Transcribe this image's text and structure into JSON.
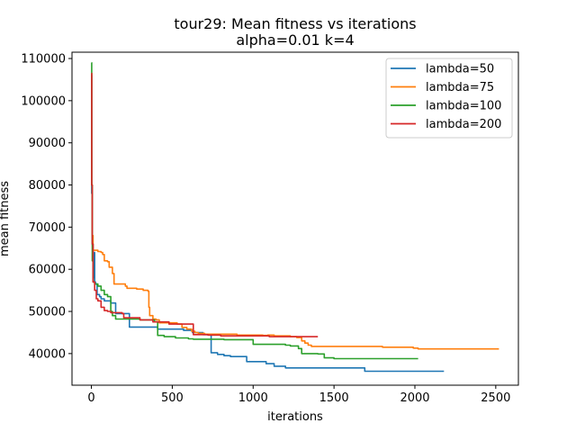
{
  "chart_data": {
    "type": "line",
    "title": "tour29: Mean fitness vs iterations",
    "subtitle": "alpha=0.01 k=4",
    "xlabel": "iterations",
    "ylabel": "mean fitness",
    "xlim": [
      -120,
      2640
    ],
    "ylim": [
      32500,
      111500
    ],
    "xticks": [
      0,
      500,
      1000,
      1500,
      2000,
      2500
    ],
    "yticks": [
      40000,
      50000,
      60000,
      70000,
      80000,
      90000,
      100000,
      110000
    ],
    "grid": false,
    "legend_position": "top-right",
    "series": [
      {
        "name": "lambda=50",
        "color": "#1f77b4",
        "points": [
          [
            0,
            106000
          ],
          [
            2,
            78000
          ],
          [
            5,
            66000
          ],
          [
            10,
            58000
          ],
          [
            15,
            64000
          ],
          [
            20,
            57000
          ],
          [
            25,
            56500
          ],
          [
            35,
            54000
          ],
          [
            50,
            53500
          ],
          [
            60,
            53000
          ],
          [
            80,
            52500
          ],
          [
            120,
            52000
          ],
          [
            140,
            52000
          ],
          [
            150,
            49500
          ],
          [
            230,
            49500
          ],
          [
            235,
            46300
          ],
          [
            400,
            46300
          ],
          [
            410,
            45800
          ],
          [
            560,
            45800
          ],
          [
            570,
            45500
          ],
          [
            620,
            45500
          ],
          [
            625,
            45000
          ],
          [
            680,
            45000
          ],
          [
            690,
            44500
          ],
          [
            730,
            44500
          ],
          [
            740,
            40200
          ],
          [
            780,
            39800
          ],
          [
            820,
            39500
          ],
          [
            860,
            39300
          ],
          [
            950,
            39300
          ],
          [
            960,
            38100
          ],
          [
            1070,
            38100
          ],
          [
            1080,
            37600
          ],
          [
            1120,
            37600
          ],
          [
            1130,
            37000
          ],
          [
            1190,
            37000
          ],
          [
            1200,
            36600
          ],
          [
            1680,
            36600
          ],
          [
            1690,
            35800
          ],
          [
            2180,
            35800
          ]
        ]
      },
      {
        "name": "lambda=75",
        "color": "#ff7f0e",
        "points": [
          [
            0,
            106500
          ],
          [
            2,
            80000
          ],
          [
            5,
            68000
          ],
          [
            10,
            64500
          ],
          [
            30,
            64500
          ],
          [
            40,
            64200
          ],
          [
            60,
            64000
          ],
          [
            70,
            63500
          ],
          [
            80,
            62000
          ],
          [
            100,
            61800
          ],
          [
            110,
            60500
          ],
          [
            130,
            59000
          ],
          [
            140,
            56500
          ],
          [
            200,
            56500
          ],
          [
            210,
            56000
          ],
          [
            220,
            55500
          ],
          [
            280,
            55300
          ],
          [
            320,
            55000
          ],
          [
            350,
            54800
          ],
          [
            355,
            51000
          ],
          [
            360,
            49000
          ],
          [
            380,
            48200
          ],
          [
            400,
            48000
          ],
          [
            420,
            47300
          ],
          [
            530,
            47000
          ],
          [
            560,
            46200
          ],
          [
            590,
            45800
          ],
          [
            620,
            45300
          ],
          [
            640,
            45000
          ],
          [
            660,
            44800
          ],
          [
            700,
            44600
          ],
          [
            900,
            44400
          ],
          [
            1060,
            44300
          ],
          [
            1090,
            44400
          ],
          [
            1130,
            44200
          ],
          [
            1230,
            44000
          ],
          [
            1270,
            43800
          ],
          [
            1300,
            43000
          ],
          [
            1320,
            42500
          ],
          [
            1340,
            42000
          ],
          [
            1360,
            41700
          ],
          [
            1800,
            41500
          ],
          [
            1990,
            41300
          ],
          [
            2020,
            41100
          ],
          [
            2520,
            41100
          ]
        ]
      },
      {
        "name": "lambda=100",
        "color": "#2ca02c",
        "points": [
          [
            0,
            109000
          ],
          [
            2,
            80000
          ],
          [
            5,
            62000
          ],
          [
            10,
            57000
          ],
          [
            20,
            56500
          ],
          [
            40,
            56000
          ],
          [
            60,
            55000
          ],
          [
            80,
            54000
          ],
          [
            100,
            53500
          ],
          [
            120,
            50000
          ],
          [
            130,
            49000
          ],
          [
            150,
            48200
          ],
          [
            300,
            48000
          ],
          [
            390,
            47500
          ],
          [
            410,
            44300
          ],
          [
            450,
            44000
          ],
          [
            520,
            43700
          ],
          [
            600,
            43500
          ],
          [
            630,
            43400
          ],
          [
            820,
            43300
          ],
          [
            980,
            43300
          ],
          [
            1000,
            42200
          ],
          [
            1200,
            42000
          ],
          [
            1230,
            41800
          ],
          [
            1280,
            41200
          ],
          [
            1300,
            40000
          ],
          [
            1400,
            39900
          ],
          [
            1440,
            39000
          ],
          [
            1500,
            38800
          ],
          [
            2020,
            38800
          ]
        ]
      },
      {
        "name": "lambda=200",
        "color": "#d62728",
        "points": [
          [
            0,
            106500
          ],
          [
            2,
            80000
          ],
          [
            5,
            66000
          ],
          [
            10,
            57000
          ],
          [
            20,
            55000
          ],
          [
            30,
            53000
          ],
          [
            40,
            52500
          ],
          [
            60,
            51000
          ],
          [
            80,
            50200
          ],
          [
            100,
            50000
          ],
          [
            120,
            49700
          ],
          [
            190,
            49500
          ],
          [
            200,
            48500
          ],
          [
            300,
            48000
          ],
          [
            380,
            47500
          ],
          [
            480,
            47000
          ],
          [
            620,
            47000
          ],
          [
            630,
            44500
          ],
          [
            720,
            44400
          ],
          [
            800,
            44200
          ],
          [
            1100,
            44000
          ],
          [
            1400,
            44000
          ]
        ]
      }
    ]
  }
}
